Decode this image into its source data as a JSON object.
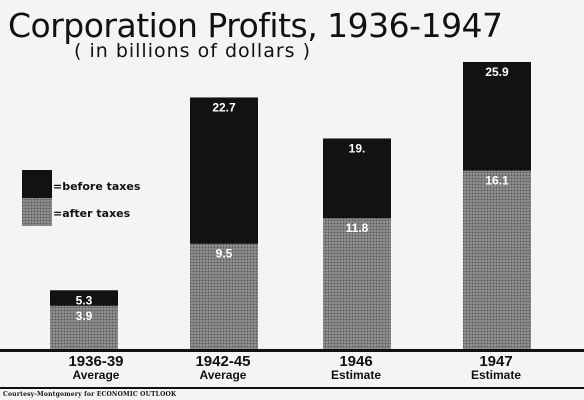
{
  "chart_data": {
    "type": "bar",
    "title": "Corporation Profits, 1936-1947",
    "subtitle": "( in billions of dollars )",
    "categories": [
      {
        "line1": "1936-39",
        "line2": "Average"
      },
      {
        "line1": "1942-45",
        "line2": "Average"
      },
      {
        "line1": "1946",
        "line2": "Estimate"
      },
      {
        "line1": "1947",
        "line2": "Estimate"
      }
    ],
    "series": [
      {
        "name": "=after taxes",
        "values": [
          3.9,
          9.5,
          11.8,
          16.1
        ],
        "value_labels": [
          "3.9",
          "9.5",
          "11.8",
          "16.1"
        ],
        "color": "#8e8e8e"
      },
      {
        "name": "=before taxes",
        "values": [
          5.3,
          22.7,
          19,
          25.9
        ],
        "value_labels": [
          "5.3",
          "22.7",
          "19.",
          "25.9"
        ],
        "color": "#121212"
      }
    ],
    "ylim": [
      0,
      25.9
    ],
    "grid": false,
    "legend_position": "left-middle"
  },
  "credit": "Courtesy-Montgomery for ECONOMIC OUTLOOK"
}
